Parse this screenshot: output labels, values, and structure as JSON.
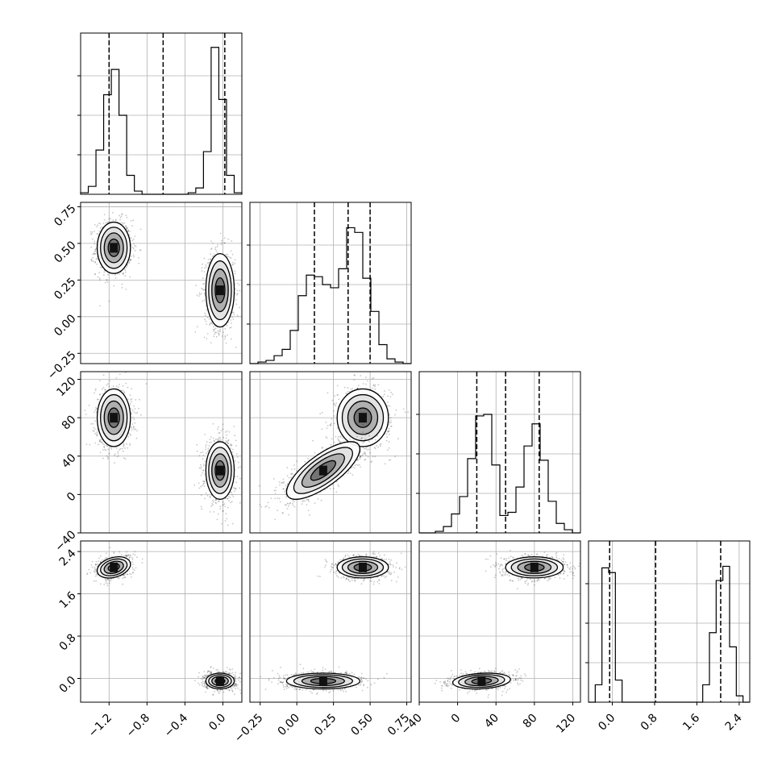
{
  "chart_data": {
    "type": "corner",
    "parameters": 4,
    "grid": true,
    "histogram_quantiles": [
      [
        -1.2,
        -0.63,
        0.02
      ],
      [
        0.12,
        0.35,
        0.5
      ],
      [
        20,
        50,
        85
      ],
      [
        -0.05,
        0.82,
        2.05
      ]
    ],
    "axes": [
      {
        "range": [
          -1.5,
          0.2
        ],
        "ticks": [
          -1.2,
          -0.8,
          -0.4,
          0.0
        ],
        "tick_labels": [
          "−1.2",
          "−0.8",
          "−0.4",
          "0.0"
        ]
      },
      {
        "range": [
          -0.32,
          0.78
        ],
        "ticks": [
          -0.25,
          0.0,
          0.25,
          0.5,
          0.75
        ],
        "tick_labels": [
          "−0.25",
          "0.00",
          "0.25",
          "0.50",
          "0.75"
        ]
      },
      {
        "range": [
          -40,
          128
        ],
        "ticks": [
          -40,
          0,
          40,
          80,
          120
        ],
        "tick_labels": [
          "−40",
          "0",
          "40",
          "80",
          "120"
        ]
      },
      {
        "range": [
          -0.45,
          2.6
        ],
        "ticks": [
          0.0,
          0.8,
          1.6,
          2.4
        ],
        "tick_labels": [
          "0.0",
          "0.8",
          "1.6",
          "2.4"
        ]
      }
    ],
    "histograms": [
      {
        "edges_range": [
          -1.5,
          0.2
        ],
        "counts": [
          0.01,
          0.05,
          0.28,
          0.63,
          0.79,
          0.5,
          0.12,
          0.02,
          0.0,
          0.0,
          0.0,
          0.0,
          0.0,
          0.0,
          0.01,
          0.04,
          0.27,
          0.93,
          0.6,
          0.12,
          0.01
        ]
      },
      {
        "edges_range": [
          -0.32,
          0.78
        ],
        "counts": [
          0.0,
          0.01,
          0.02,
          0.05,
          0.09,
          0.21,
          0.43,
          0.56,
          0.55,
          0.5,
          0.48,
          0.6,
          0.86,
          0.83,
          0.54,
          0.33,
          0.12,
          0.03,
          0.01,
          0.0
        ]
      },
      {
        "edges_range": [
          -40,
          128
        ],
        "counts": [
          0.0,
          0.0,
          0.01,
          0.04,
          0.12,
          0.23,
          0.47,
          0.74,
          0.75,
          0.43,
          0.11,
          0.13,
          0.29,
          0.55,
          0.69,
          0.46,
          0.2,
          0.06,
          0.02,
          0.0
        ]
      },
      {
        "edges_range": [
          -0.45,
          2.6
        ],
        "counts": [
          0.0,
          0.11,
          0.85,
          0.82,
          0.14,
          0.0,
          0.0,
          0.0,
          0.0,
          0.0,
          0.0,
          0.0,
          0.0,
          0.0,
          0.0,
          0.0,
          0.0,
          0.11,
          0.44,
          0.77,
          0.86,
          0.35,
          0.04,
          0.0
        ]
      }
    ],
    "clusters": [
      {
        "means": [
          -1.15,
          0.47,
          80,
          2.1
        ],
        "sds": [
          0.07,
          0.07,
          12,
          0.08
        ],
        "correlation": {
          "1-2": 0.0,
          "1-3": 0.0,
          "1-4": 0.3,
          "2-3": 0.0,
          "2-4": 0.0,
          "3-4": 0.0
        }
      },
      {
        "means": [
          -0.02,
          0.45,
          80,
          2.1
        ],
        "sds": [
          0.06,
          0.07,
          12,
          0.08
        ],
        "correlation": {
          "1-2": 0.0,
          "1-3": 0.0,
          "1-4": 0.0,
          "2-3": 0.0,
          "2-4": 0.0,
          "3-4": 0.0
        }
      },
      {
        "means": [
          -0.03,
          0.18,
          25,
          -0.05
        ],
        "sds": [
          0.06,
          0.1,
          12,
          0.06
        ],
        "correlation": {
          "1-2": 0.0,
          "1-3": 0.0,
          "1-4": 0.0,
          "2-3": 0.75,
          "2-4": 0.0,
          "3-4": 0.2
        }
      }
    ],
    "panel_cluster_map": {
      "1-0": [
        0,
        2
      ],
      "2-0": [
        0,
        2
      ],
      "2-1": [
        1,
        2
      ],
      "3-0": [
        0,
        2
      ],
      "3-1": [
        1,
        2
      ],
      "3-2": [
        1,
        2
      ]
    }
  }
}
